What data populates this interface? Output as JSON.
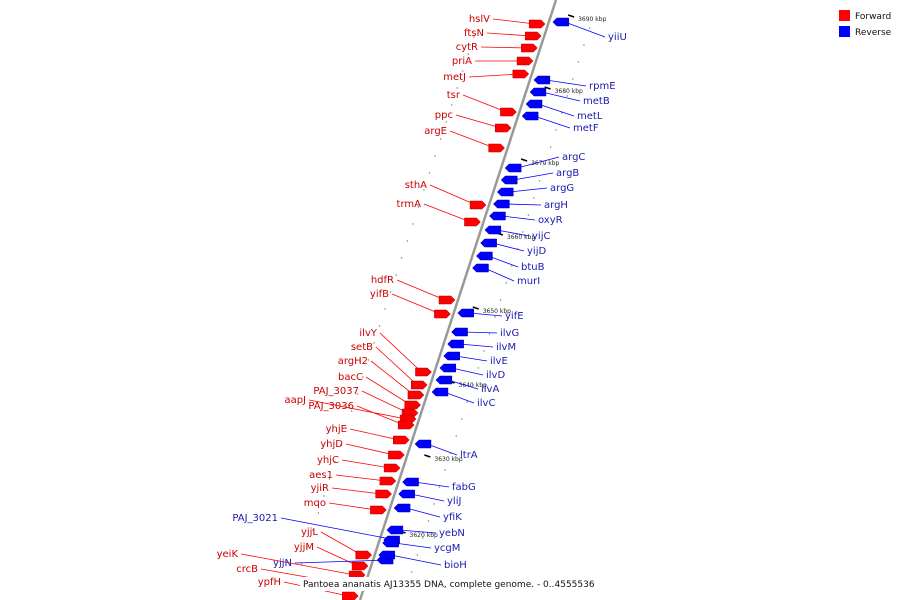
{
  "legend": [
    {
      "label": "Forward",
      "color": "#ff0000"
    },
    {
      "label": "Reverse",
      "color": "#0000ff"
    }
  ],
  "caption": "Pantoea ananatis AJ13355 DNA, complete genome. - 0..4555536",
  "colors": {
    "forward": "#ff0000",
    "reverse": "#0000ff",
    "backbone": "#999999"
  },
  "ticks": [
    "3690 kbp",
    "3680 kbp",
    "3670 kbp",
    "3660 kbp",
    "3650 kbp",
    "3640 kbp",
    "3630 kbp",
    "3620 kbp"
  ],
  "genes": {
    "forward": [
      "hslV",
      "ftsN",
      "cytR",
      "priA",
      "metJ",
      "tsr",
      "ppc",
      "argE",
      "sthA",
      "trmA",
      "hdfR",
      "yifB",
      "ilvY",
      "setB",
      "argH2",
      "bacC",
      "PAJ_3037",
      "aapJ",
      "PAJ_3036",
      "yhjE",
      "yhjD",
      "yhjC",
      "aes1",
      "yjiR",
      "mqo",
      "yjjL",
      "yjjM",
      "yeiK",
      "crcB",
      "ypfH"
    ],
    "reverse": [
      "yiiU",
      "rpmE",
      "metB",
      "metL",
      "metF",
      "argC",
      "argB",
      "argG",
      "argH",
      "oxyR",
      "yijC",
      "yijD",
      "btuB",
      "murI",
      "yifE",
      "ilvG",
      "ilvM",
      "ilvE",
      "ilvD",
      "ilvA",
      "ilvC",
      "ltrA",
      "fabG",
      "yliJ",
      "yfiK",
      "PAJ_3021",
      "yebN",
      "ycgM",
      "yjjN",
      "bioH"
    ]
  }
}
